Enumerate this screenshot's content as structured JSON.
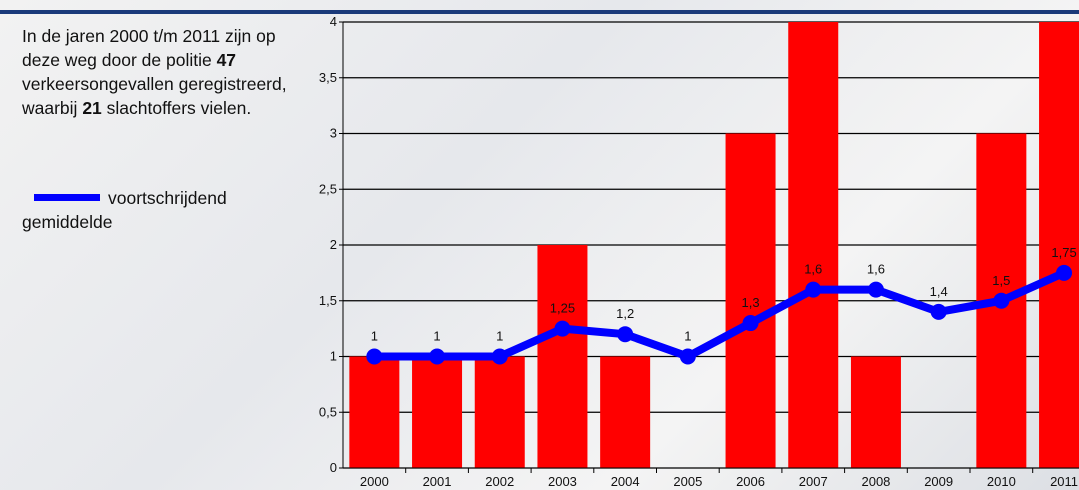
{
  "intro": [
    "In de jaren 2000 t/m 2011 zijn op deze weg door de politie ",
    "47",
    " verkeersongevallen geregistreerd, waarbij ",
    "21",
    " slachtoffers vielen."
  ],
  "chart_data": {
    "type": "bar-line",
    "categories": [
      "2000",
      "2001",
      "2002",
      "2003",
      "2004",
      "2005",
      "2006",
      "2007",
      "2008",
      "2009",
      "2010",
      "2011"
    ],
    "series": [
      {
        "type": "bar",
        "color": "#ff0000",
        "values": [
          1,
          1,
          1,
          2,
          1,
          0,
          3,
          4,
          1,
          0,
          3,
          4
        ]
      },
      {
        "type": "line",
        "name": "voortschrijdend gemiddelde",
        "color": "#0000ff",
        "values": [
          1,
          1,
          1,
          1.25,
          1.2,
          1,
          1.3,
          1.6,
          1.6,
          1.4,
          1.5,
          1.75
        ],
        "value_labels": [
          "1",
          "1",
          "1",
          "1,25",
          "1,2",
          "1",
          "1,3",
          "1,6",
          "1,6",
          "1,4",
          "1,5",
          "1,75"
        ]
      }
    ],
    "ylim": [
      0,
      4
    ],
    "yticks": [
      0,
      {
        "value": 0.5,
        "label": "0,5"
      },
      1,
      {
        "value": 1.5,
        "label": "1,5"
      },
      2,
      {
        "value": 2.5,
        "label": "2,5"
      },
      3,
      {
        "value": 3.5,
        "label": "3,5"
      },
      4
    ],
    "grid": true
  }
}
